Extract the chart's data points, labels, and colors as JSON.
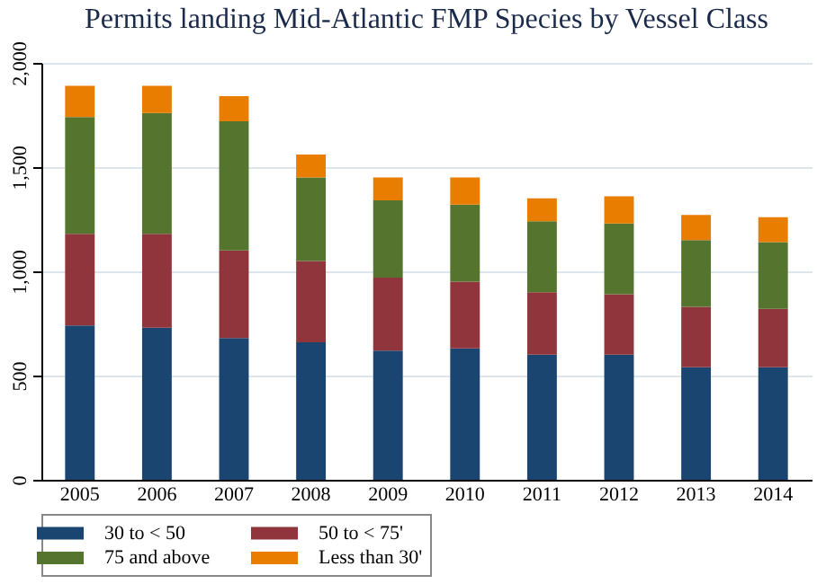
{
  "chart_data": {
    "type": "bar",
    "title": "Permits landing Mid-Atlantic FMP Species by Vessel Class",
    "categories": [
      "2005",
      "2006",
      "2007",
      "2008",
      "2009",
      "2010",
      "2011",
      "2012",
      "2013",
      "2014"
    ],
    "stacked": true,
    "series": [
      {
        "name": "30 to < 50",
        "color": "#1a4570",
        "values": [
          740,
          730,
          680,
          660,
          620,
          630,
          600,
          600,
          540,
          540
        ]
      },
      {
        "name": "50 to < 75'",
        "color": "#90353b",
        "values": [
          440,
          450,
          420,
          390,
          350,
          320,
          300,
          290,
          290,
          280
        ]
      },
      {
        "name": "75 and above",
        "color": "#55752f",
        "values": [
          560,
          580,
          620,
          400,
          370,
          370,
          340,
          340,
          320,
          320
        ]
      },
      {
        "name": "Less than 30'",
        "color": "#e87d00",
        "values": [
          150,
          130,
          120,
          110,
          110,
          130,
          110,
          130,
          120,
          120
        ]
      }
    ],
    "ylim": [
      0,
      2000
    ],
    "yticks": [
      0,
      {
        "value": 500,
        "label": "500"
      },
      {
        "value": 1000,
        "label": "1,000"
      },
      {
        "value": 1500,
        "label": "1,500"
      },
      {
        "value": 2000,
        "label": "2,000"
      }
    ],
    "grid": "y",
    "legend": "bottom"
  }
}
